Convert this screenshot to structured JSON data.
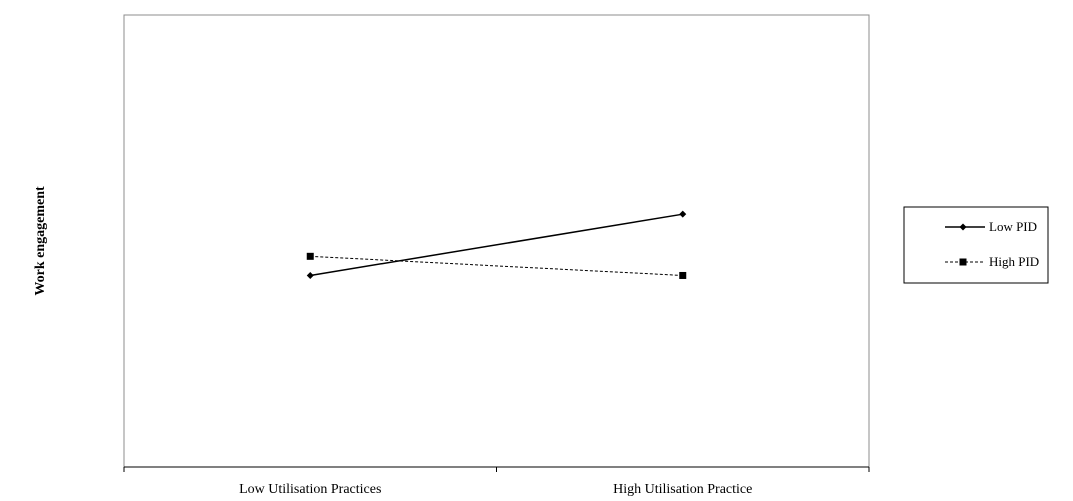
{
  "chart_data": {
    "type": "line",
    "categories": [
      "Low Utilisation Practices",
      "High Utilisation Practice"
    ],
    "series": [
      {
        "name": "Low PID",
        "values": [
          2.7,
          4.3
        ],
        "style": "solid",
        "marker": "diamond"
      },
      {
        "name": "High PID",
        "values": [
          3.2,
          2.7
        ],
        "style": "dashed",
        "marker": "square"
      }
    ],
    "title": "",
    "xlabel": "",
    "ylabel": "Work engagement",
    "ylim": [
      -2.3,
      9.5
    ],
    "grid": false,
    "legend": "right"
  }
}
